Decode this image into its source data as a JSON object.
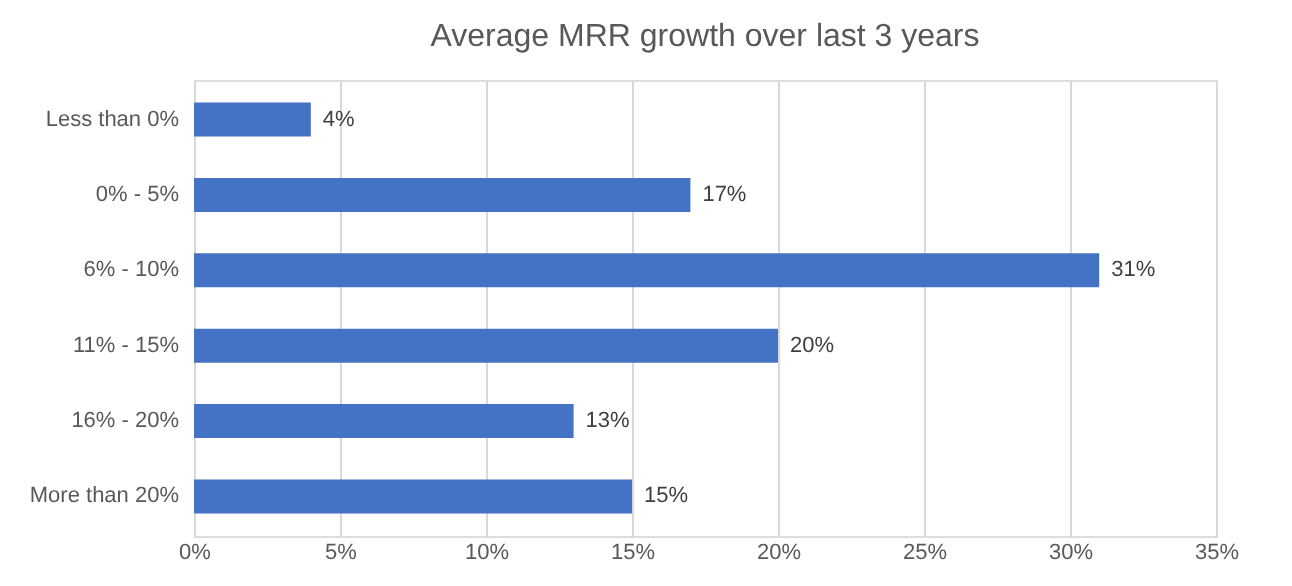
{
  "chart_data": {
    "type": "bar",
    "orientation": "horizontal",
    "title": "Average MRR growth over last 3 years",
    "categories": [
      "Less than 0%",
      "0% - 5%",
      "6% - 10%",
      "11% - 15%",
      "16% - 20%",
      "More than 20%"
    ],
    "values": [
      4,
      17,
      31,
      20,
      13,
      15
    ],
    "value_labels": [
      "4%",
      "17%",
      "31%",
      "20%",
      "13%",
      "15%"
    ],
    "color": "#4472c4",
    "xlim": [
      0,
      35
    ],
    "xticks": [
      {
        "value": 0,
        "label": "0%"
      },
      {
        "value": 5,
        "label": "5%"
      },
      {
        "value": 10,
        "label": "10%"
      },
      {
        "value": 15,
        "label": "15%"
      },
      {
        "value": 20,
        "label": "20%"
      },
      {
        "value": 25,
        "label": "25%"
      },
      {
        "value": 30,
        "label": "30%"
      },
      {
        "value": 35,
        "label": "35%"
      }
    ],
    "grid": "x"
  }
}
